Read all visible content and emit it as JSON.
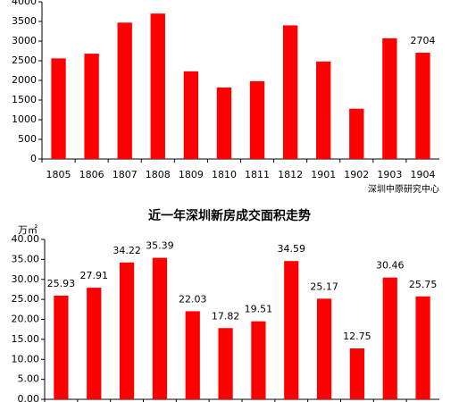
{
  "chart_data": [
    {
      "type": "bar",
      "categories": [
        "1805",
        "1806",
        "1807",
        "1808",
        "1809",
        "1810",
        "1811",
        "1812",
        "1901",
        "1902",
        "1903",
        "1904"
      ],
      "values": [
        2560,
        2680,
        3470,
        3700,
        2230,
        1820,
        1980,
        3400,
        2480,
        1280,
        3070,
        2704
      ],
      "value_labels": [
        null,
        null,
        null,
        null,
        null,
        null,
        null,
        null,
        null,
        null,
        null,
        "2704"
      ],
      "color": "#ff0000",
      "ylim": [
        0,
        4000
      ],
      "yticks": [
        0,
        500,
        1000,
        1500,
        2000,
        2500,
        3000,
        3500,
        4000
      ],
      "source": "深圳中原研究中心"
    },
    {
      "type": "bar",
      "title": "近一年深圳新房成交面积走势",
      "y_label": "万㎡",
      "categories": [
        null,
        null,
        null,
        null,
        null,
        null,
        null,
        null,
        null,
        null,
        null,
        null
      ],
      "values": [
        25.93,
        27.91,
        34.22,
        35.39,
        22.03,
        17.82,
        19.51,
        34.59,
        25.17,
        12.75,
        30.46,
        25.75
      ],
      "value_labels": [
        "25.93",
        "27.91",
        "34.22",
        "35.39",
        "22.03",
        "17.82",
        "19.51",
        "34.59",
        "25.17",
        "12.75",
        "30.46",
        "25.75"
      ],
      "color": "#ff0000",
      "ylim": [
        0,
        40
      ],
      "yticks": [
        {
          "value": 0,
          "label": "0.00"
        },
        {
          "value": 5,
          "label": "5.00"
        },
        {
          "value": 10,
          "label": "10.00"
        },
        {
          "value": 15,
          "label": "15.00"
        },
        {
          "value": 20,
          "label": "20.00"
        },
        {
          "value": 25,
          "label": "25.00"
        },
        {
          "value": 30,
          "label": "30.00"
        },
        {
          "value": 35,
          "label": "35.00"
        },
        {
          "value": 40,
          "label": "40.00"
        }
      ]
    }
  ]
}
